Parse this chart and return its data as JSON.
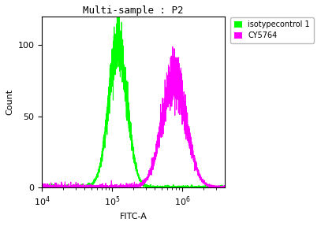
{
  "title": "Multi-sample : P2",
  "xlabel": "FITC-A",
  "ylabel": "Count",
  "xlim_log_min": 4.0,
  "xlim_log_max": 6.6,
  "ylim": [
    0,
    120
  ],
  "yticks": [
    0,
    50,
    100
  ],
  "background_color": "#ffffff",
  "plot_bg_color": "#ffffff",
  "green_color": "#00ff00",
  "magenta_color": "#ff00ff",
  "legend_labels": [
    "isotypecontrol 1",
    "CY5764"
  ],
  "green_peak_log": 5.08,
  "green_peak_height": 100,
  "green_sigma_log": 0.13,
  "magenta_peak_log": 5.88,
  "magenta_peak_height": 78,
  "magenta_sigma_log": 0.17,
  "line_width": 0.8,
  "title_fontsize": 9,
  "label_fontsize": 8,
  "tick_fontsize": 8,
  "legend_fontsize": 7
}
